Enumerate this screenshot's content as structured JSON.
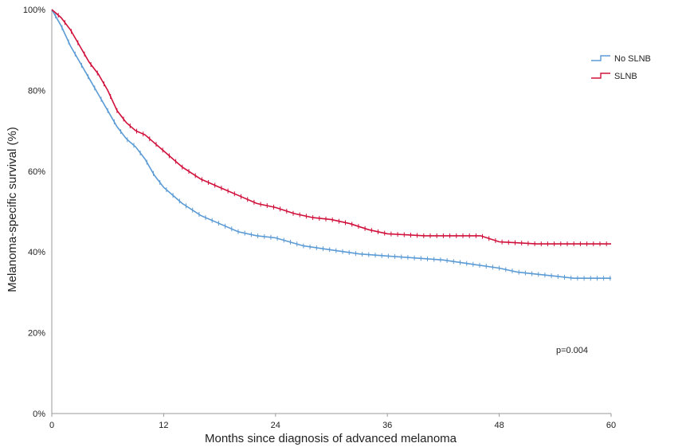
{
  "chart_data": {
    "type": "line",
    "subtype": "kaplan-meier",
    "title": "",
    "xlabel": "Months since diagnosis of advanced melanoma",
    "ylabel": "Melanoma-specific survival (%)",
    "xlim": [
      0,
      60
    ],
    "ylim": [
      0,
      100
    ],
    "xticks": [
      "0",
      "12",
      "24",
      "36",
      "48",
      "60"
    ],
    "yticks": [
      "0%",
      "20%",
      "40%",
      "60%",
      "80%",
      "100%"
    ],
    "grid": false,
    "legend_position": "top-right",
    "annotation": "p=0.004",
    "series": [
      {
        "name": "No SLNB",
        "color": "#5b9bd5",
        "x": [
          0,
          1,
          2,
          3,
          4,
          5,
          6,
          7,
          8,
          9,
          10,
          11,
          12,
          14,
          16,
          18,
          20,
          22,
          24,
          27,
          30,
          33,
          36,
          39,
          42,
          45,
          48,
          50,
          52,
          54,
          56,
          58,
          60
        ],
        "y": [
          100,
          96,
          91,
          87,
          83,
          79,
          75,
          71,
          68,
          66,
          63,
          59,
          56,
          52,
          49,
          47,
          45,
          44,
          43.5,
          41.5,
          40.5,
          39.5,
          39,
          38.5,
          38,
          37,
          36,
          35,
          34.5,
          34,
          33.5,
          33.5,
          33.5
        ]
      },
      {
        "name": "SLNB",
        "color": "#d0103a",
        "x": [
          0,
          1,
          2,
          3,
          4,
          5,
          6,
          7,
          8,
          9,
          10,
          11,
          12,
          14,
          16,
          18,
          20,
          22,
          24,
          26,
          28,
          30,
          32,
          34,
          36,
          40,
          44,
          46,
          48,
          52,
          56,
          60
        ],
        "y": [
          100,
          98,
          95,
          91,
          87,
          84,
          80,
          75,
          72,
          70,
          69,
          67,
          65,
          61,
          58,
          56,
          54,
          52,
          51,
          49.5,
          48.5,
          48,
          47,
          45.5,
          44.5,
          44,
          44,
          44,
          42.5,
          42,
          42,
          42
        ]
      }
    ]
  }
}
